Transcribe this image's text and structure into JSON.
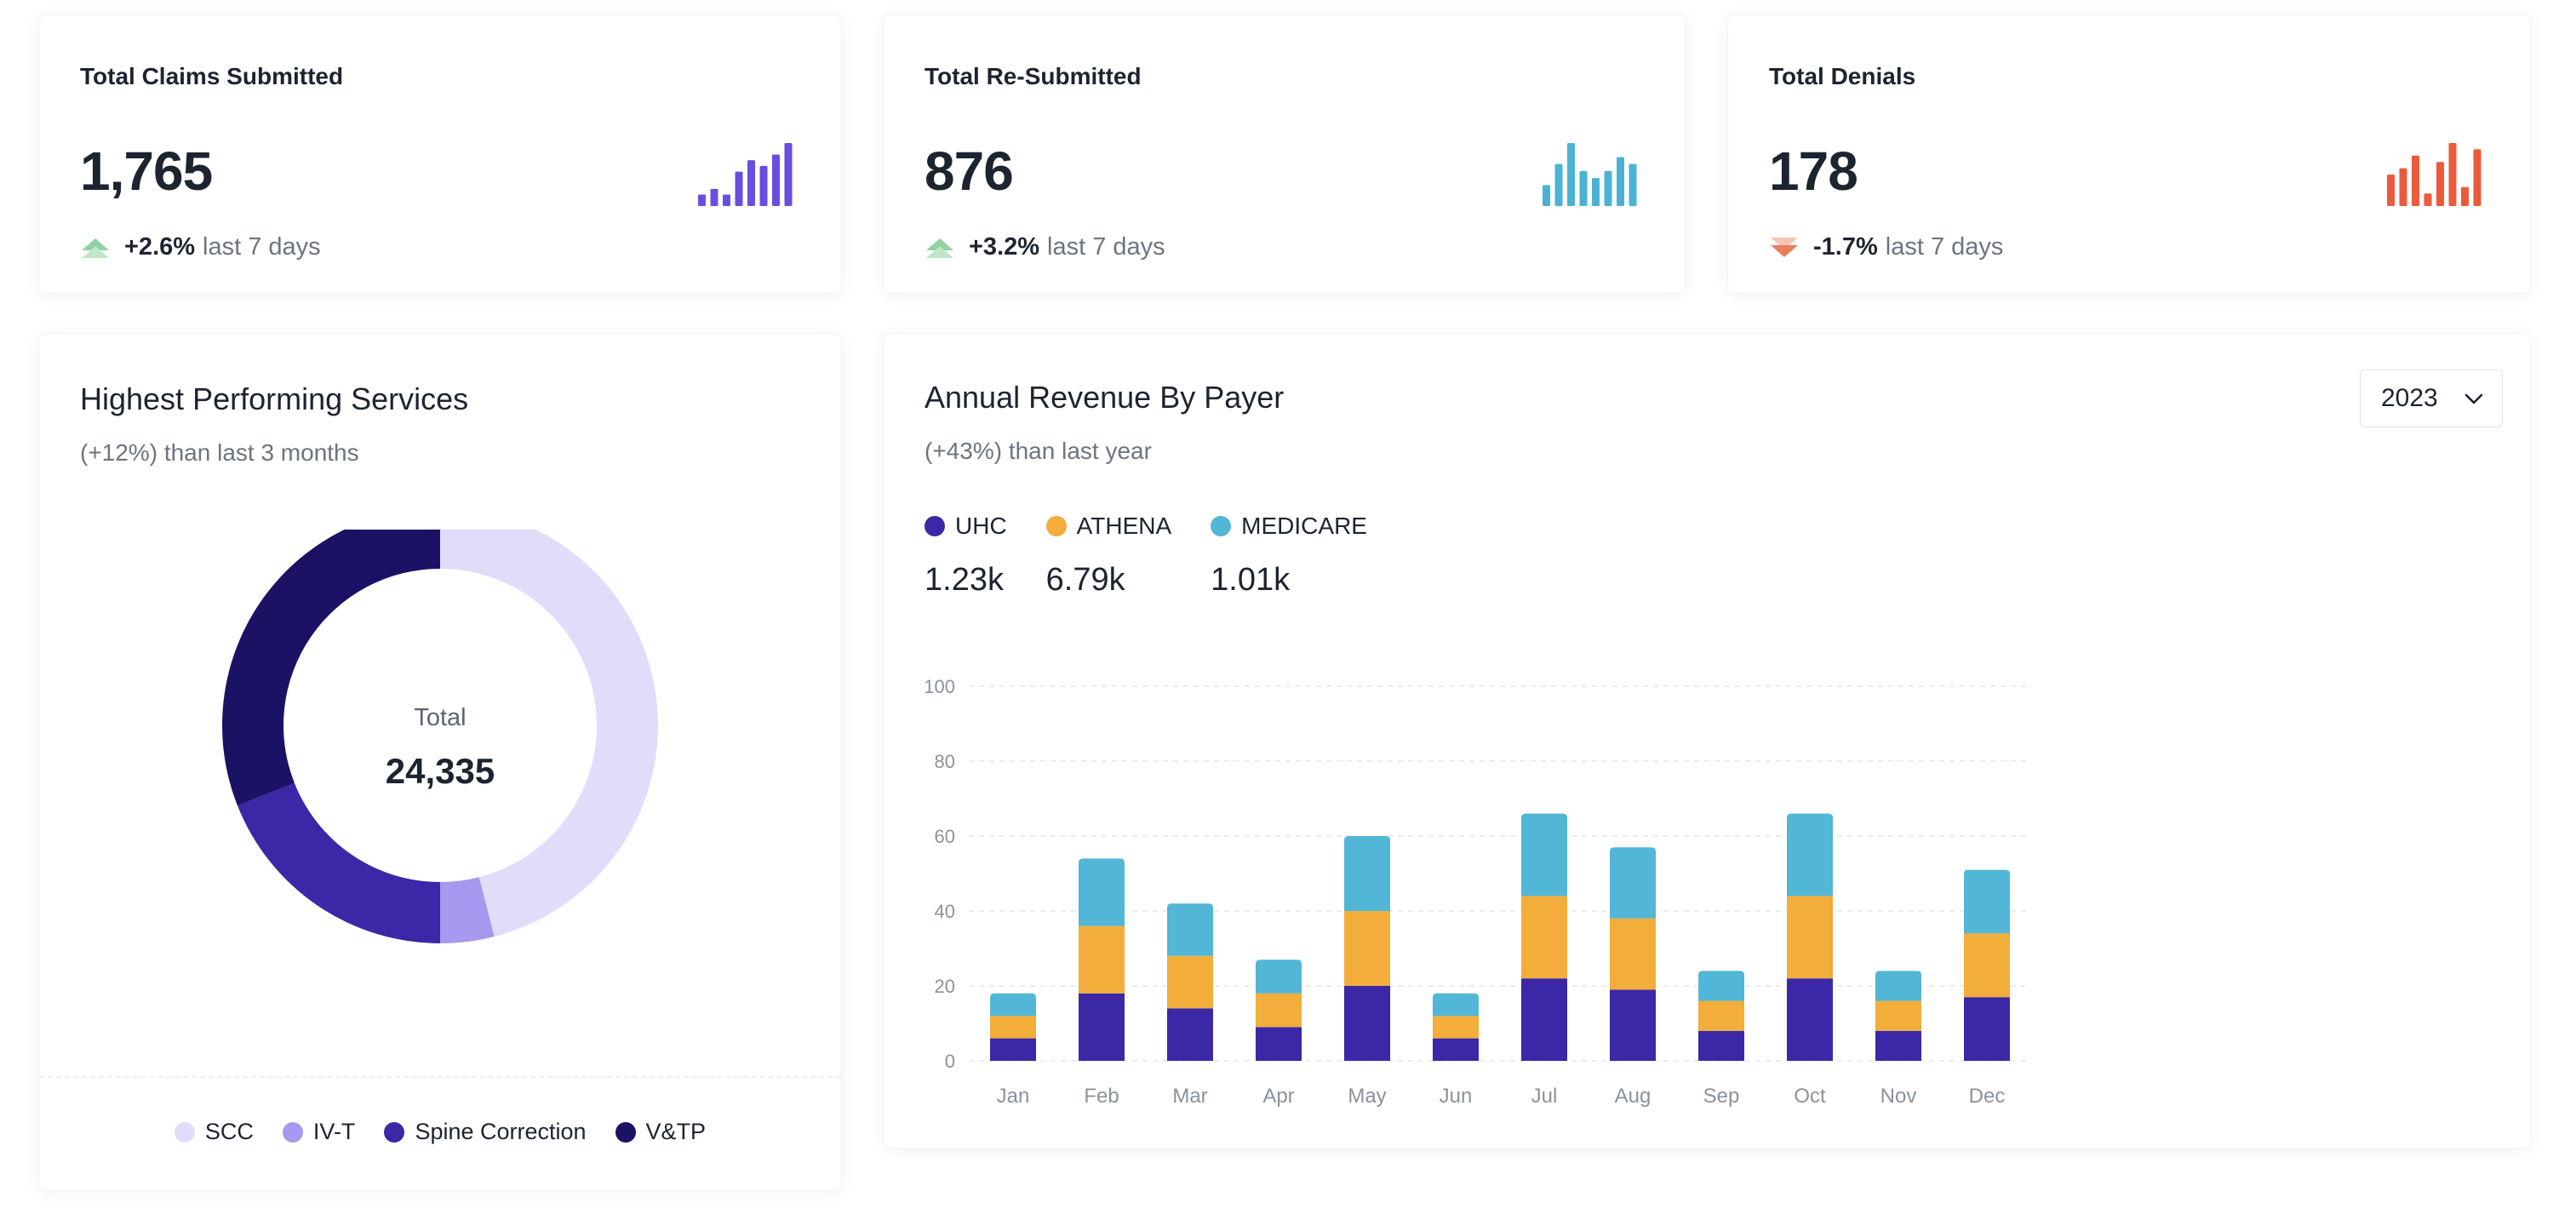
{
  "kpis": [
    {
      "title": "Total Claims Submitted",
      "value": "1,765",
      "change": "+2.6%",
      "period": "last 7 days",
      "direction": "up",
      "color": "#6a4ee0",
      "spark": [
        2,
        3,
        2,
        6,
        8,
        7,
        9,
        11
      ]
    },
    {
      "title": "Total Re-Submitted",
      "value": "876",
      "change": "+3.2%",
      "period": "last 7 days",
      "direction": "up",
      "color": "#4ab3d4",
      "spark": [
        3,
        6,
        9,
        5,
        4,
        5,
        7,
        6
      ]
    },
    {
      "title": "Total Denials",
      "value": "178",
      "change": "-1.7%",
      "period": "last 7 days",
      "direction": "down",
      "color": "#ea5b3c",
      "spark": [
        5,
        6,
        8,
        2,
        7,
        10,
        3,
        9
      ]
    }
  ],
  "services": {
    "title": "Highest Performing Services",
    "subtitle": "(+12%) than last 3 months",
    "center_label": "Total",
    "center_value": "24,335"
  },
  "revenue": {
    "title": "Annual Revenue By Payer",
    "subtitle": "(+43%) than last year",
    "year": "2023",
    "payers": [
      {
        "name": "UHC",
        "total": "1.23k",
        "color": "#3a28a6"
      },
      {
        "name": "ATHENA",
        "total": "6.79k",
        "color": "#f2ad3a"
      },
      {
        "name": "MEDICARE",
        "total": "1.01k",
        "color": "#52b6d6"
      }
    ]
  },
  "chart_data": [
    {
      "type": "pie",
      "title": "Highest Performing Services",
      "labels": [
        "SCC",
        "IV-T",
        "Spine Correction",
        "V&TP"
      ],
      "values": [
        46,
        4,
        19,
        31
      ],
      "colors": [
        "#e2dcfb",
        "#a898ef",
        "#3a28a6",
        "#1b1265"
      ]
    },
    {
      "type": "bar",
      "title": "Annual Revenue By Payer",
      "stacked": true,
      "categories": [
        "Jan",
        "Feb",
        "Mar",
        "Apr",
        "May",
        "Jun",
        "Jul",
        "Aug",
        "Sep",
        "Oct",
        "Nov",
        "Dec"
      ],
      "series": [
        {
          "name": "UHC",
          "values": [
            6,
            18,
            14,
            9,
            20,
            6,
            22,
            19,
            8,
            22,
            8,
            17
          ],
          "color": "#3a28a6"
        },
        {
          "name": "ATHENA",
          "values": [
            6,
            18,
            14,
            9,
            20,
            6,
            22,
            19,
            8,
            22,
            8,
            17
          ],
          "color": "#f2ad3a"
        },
        {
          "name": "MEDICARE",
          "values": [
            6,
            18,
            14,
            9,
            20,
            6,
            22,
            19,
            8,
            22,
            8,
            17
          ],
          "color": "#52b6d6"
        }
      ],
      "yticks": [
        0,
        20,
        40,
        60,
        80,
        100
      ],
      "ylim": [
        0,
        100
      ]
    }
  ]
}
